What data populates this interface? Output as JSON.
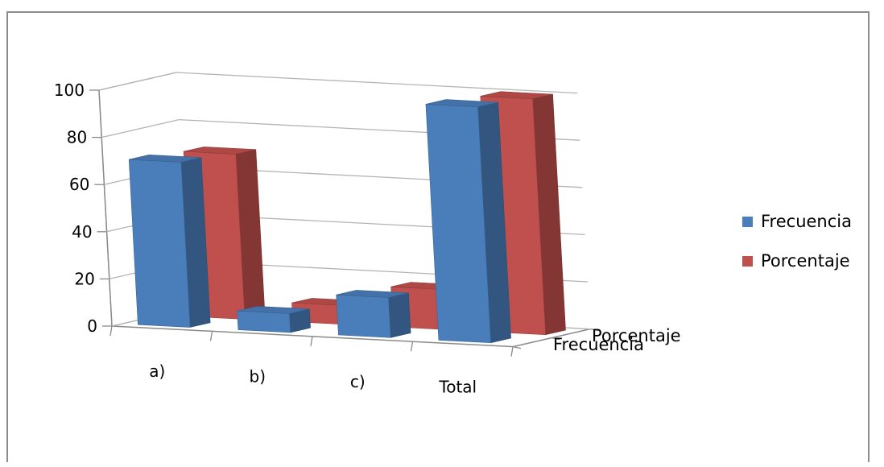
{
  "chart_data": {
    "type": "bar",
    "style": "3d-column",
    "categories": [
      "a)",
      "b)",
      "c)",
      "Total"
    ],
    "series": [
      {
        "name": "Frecuencia",
        "values": [
          70,
          8,
          17,
          100
        ],
        "color": "#4a7ebb"
      },
      {
        "name": "Porcentaje",
        "values": [
          70,
          8,
          17,
          100
        ],
        "color": "#c0504d"
      }
    ],
    "depth_labels": [
      "Porcentaje",
      "Frecuencia"
    ],
    "y_ticks": [
      "0",
      "20",
      "40",
      "60",
      "80",
      "100"
    ],
    "ylim": [
      0,
      100
    ],
    "grid": true,
    "legend": "right"
  }
}
